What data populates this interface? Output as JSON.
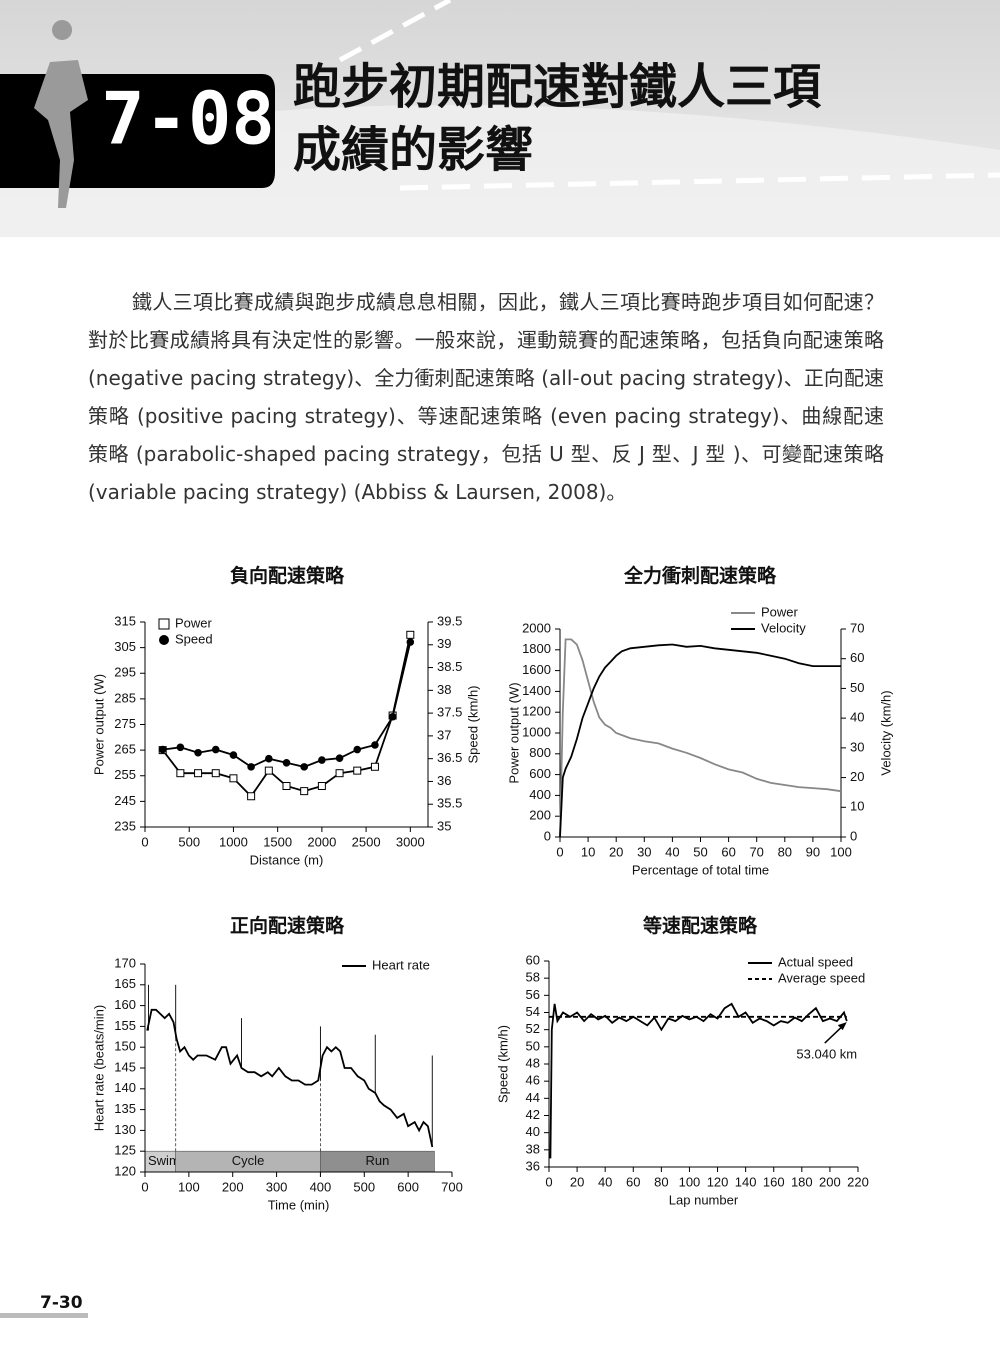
{
  "header": {
    "chapter": "7-08",
    "title": [
      "跑步初期配速對鐵人三項",
      "成績的影響"
    ]
  },
  "body": "鐵人三項比賽成績與跑步成績息息相關，因此，鐵人三項比賽時跑步項目如何配速？對於比賽成績將具有決定性的影響。一般來說，運動競賽的配速策略，包括負向配速策略 (negative pacing strategy)、全力衝刺配速策略 (all-out pacing strategy)、正向配速策略 (positive pacing strategy)、等速配速策略 (even pacing strategy)、曲線配速策略 (parabolic-shaped pacing strategy，包括 U 型、反 J 型、J 型 )、可變配速策略 (variable pacing strategy) (Abbiss & Laursen, 2008)。",
  "page_number": "7-30",
  "chart_data": [
    {
      "type": "line",
      "title": "負向配速策略",
      "x_label": "Distance (m)",
      "y_label": "Power output (W)",
      "y2_label": "Speed (km/h)",
      "xlim": [
        0,
        3200
      ],
      "xticks": [
        0,
        500,
        1000,
        1500,
        2000,
        2500,
        3000
      ],
      "ylim": [
        235,
        315
      ],
      "yticks": [
        235,
        245,
        255,
        265,
        275,
        285,
        295,
        305,
        315
      ],
      "y2lim": [
        35,
        39.5
      ],
      "y2ticks": [
        35,
        35.5,
        36,
        36.5,
        37,
        37.5,
        38,
        38.5,
        39,
        39.5
      ],
      "legend": "upper left",
      "series": [
        {
          "name": "Power",
          "color": "#000000",
          "marker": "open-square",
          "x": [
            200,
            400,
            600,
            800,
            1000,
            1200,
            1400,
            1600,
            1800,
            2000,
            2200,
            2400,
            2600,
            2800,
            3000
          ],
          "values": [
            265,
            256,
            256,
            256,
            254,
            247,
            257,
            251,
            249,
            251,
            256,
            257,
            258.5,
            278.5,
            310
          ]
        },
        {
          "name": "Speed",
          "color": "#000000",
          "marker": "filled-circle",
          "axis": "y2",
          "x": [
            200,
            400,
            600,
            800,
            1000,
            1200,
            1400,
            1600,
            1800,
            2000,
            2200,
            2400,
            2600,
            2800,
            3000
          ],
          "values": [
            36.7,
            36.75,
            36.63,
            36.7,
            36.58,
            36.32,
            36.5,
            36.41,
            36.32,
            36.47,
            36.51,
            36.7,
            36.8,
            37.42,
            39.06
          ]
        }
      ]
    },
    {
      "type": "line",
      "title": "全力衝刺配速策略",
      "x_label": "Percentage of total time",
      "y_label": "Power output (W)",
      "y2_label": "Velocity (km/h)",
      "xlim": [
        0,
        100
      ],
      "xticks": [
        0,
        10,
        20,
        30,
        40,
        50,
        60,
        70,
        80,
        90,
        100
      ],
      "ylim": [
        0,
        2000
      ],
      "yticks": [
        0,
        200,
        400,
        600,
        800,
        1000,
        1200,
        1400,
        1600,
        1800,
        2000
      ],
      "y2lim": [
        0,
        70
      ],
      "y2ticks": [
        0,
        10,
        20,
        30,
        40,
        50,
        60,
        70
      ],
      "legend": "upper right",
      "series": [
        {
          "name": "Power",
          "color": "#888888",
          "x": [
            0,
            1,
            2,
            4,
            6,
            8,
            10,
            12,
            14,
            16,
            18,
            20,
            25,
            30,
            35,
            40,
            45,
            50,
            55,
            60,
            65,
            70,
            75,
            80,
            85,
            90,
            95,
            100
          ],
          "values": [
            0,
            1200,
            1900,
            1900,
            1850,
            1700,
            1500,
            1300,
            1150,
            1080,
            1050,
            1000,
            950,
            920,
            900,
            850,
            810,
            760,
            700,
            650,
            620,
            560,
            520,
            500,
            480,
            470,
            460,
            440
          ]
        },
        {
          "name": "Velocity",
          "color": "#000000",
          "axis": "y2",
          "x": [
            0,
            1,
            2,
            4,
            6,
            8,
            10,
            12,
            14,
            16,
            18,
            20,
            22,
            25,
            30,
            35,
            40,
            45,
            50,
            55,
            60,
            65,
            70,
            75,
            80,
            85,
            90,
            95,
            100
          ],
          "values": [
            0,
            20,
            23,
            27,
            33,
            40,
            45,
            50,
            54,
            57,
            59,
            61,
            62.5,
            63.5,
            64,
            64.5,
            64.8,
            64,
            64.3,
            63.5,
            63,
            62.5,
            62,
            61,
            60,
            58.5,
            57.5,
            57.5,
            57.5
          ]
        }
      ]
    },
    {
      "type": "line",
      "title": "正向配速策略",
      "x_label": "Time (min)",
      "y_label": "Heart rate (beats/min)",
      "xlim": [
        0,
        700
      ],
      "xticks": [
        0,
        100,
        200,
        300,
        400,
        500,
        600,
        700
      ],
      "ylim": [
        120,
        170
      ],
      "yticks": [
        120,
        125,
        130,
        135,
        140,
        145,
        150,
        155,
        160,
        165,
        170
      ],
      "legend": "upper right",
      "series": [
        {
          "name": "Heart rate",
          "color": "#000000",
          "x": [
            5,
            15,
            25,
            35,
            45,
            55,
            65,
            72,
            80,
            90,
            100,
            110,
            120,
            140,
            160,
            175,
            185,
            195,
            210,
            220,
            235,
            250,
            265,
            280,
            290,
            305,
            320,
            335,
            350,
            365,
            380,
            395,
            405,
            415,
            425,
            435,
            445,
            455,
            470,
            485,
            500,
            510,
            525,
            535,
            545,
            560,
            575,
            590,
            600,
            615,
            625,
            635,
            645,
            655
          ],
          "values": [
            154,
            159,
            159,
            158,
            157,
            158,
            156,
            152,
            149,
            150,
            148,
            147,
            148,
            148,
            147,
            150,
            150,
            146,
            148,
            145,
            144,
            144,
            143,
            144,
            143,
            145,
            143,
            142,
            142,
            141,
            141,
            142,
            148,
            150,
            149,
            150,
            149,
            145,
            145,
            143,
            142,
            140,
            139,
            137,
            136,
            135,
            133,
            134,
            131,
            132,
            130,
            132,
            131,
            126
          ]
        }
      ],
      "peaks": {
        "x": [
          8,
          70,
          220,
          400,
          525,
          655
        ],
        "values": [
          165,
          165,
          157,
          155,
          153,
          148
        ]
      },
      "segments": [
        {
          "label": "Swim",
          "start": 0,
          "end": 70,
          "color": "#cfcfcf"
        },
        {
          "label": "Cycle",
          "start": 70,
          "end": 400,
          "color": "#b4b4b4"
        },
        {
          "label": "Run",
          "start": 400,
          "end": 660,
          "color": "#8f8f8f"
        }
      ],
      "segment_ylim": [
        120,
        125
      ]
    },
    {
      "type": "line",
      "title": "等速配速策略",
      "x_label": "Lap number",
      "y_label": "Speed (km/h)",
      "xlim": [
        0,
        220
      ],
      "xticks": [
        0,
        20,
        40,
        60,
        80,
        100,
        120,
        140,
        160,
        180,
        200,
        220
      ],
      "ylim": [
        36,
        60
      ],
      "yticks": [
        36,
        38,
        40,
        42,
        44,
        46,
        48,
        50,
        52,
        54,
        56,
        58,
        60
      ],
      "legend": "upper right",
      "series": [
        {
          "name": "Actual speed",
          "color": "#000000",
          "x": [
            1,
            2,
            4,
            6,
            10,
            15,
            20,
            25,
            30,
            35,
            40,
            45,
            50,
            55,
            60,
            65,
            70,
            75,
            80,
            85,
            90,
            95,
            100,
            105,
            110,
            115,
            120,
            125,
            130,
            135,
            140,
            145,
            150,
            155,
            160,
            165,
            170,
            175,
            180,
            185,
            190,
            195,
            200,
            205,
            210,
            212
          ],
          "values": [
            37,
            52,
            55,
            53,
            54,
            53.5,
            54,
            53,
            53.8,
            53.2,
            53.6,
            52.8,
            53.4,
            53,
            53.5,
            53,
            52.5,
            53.4,
            52,
            53.3,
            53,
            53.6,
            53.2,
            53.5,
            53,
            53.8,
            53.3,
            54.5,
            55,
            53.5,
            54,
            52.8,
            53.3,
            53,
            52.5,
            53,
            52.8,
            53.4,
            53,
            53.8,
            54.5,
            53,
            53.3,
            53,
            54,
            53
          ]
        },
        {
          "name": "Average speed",
          "color": "#000000",
          "dash": true,
          "x": [
            0,
            212
          ],
          "values": [
            53.5,
            53.5
          ]
        }
      ],
      "annotation": {
        "text": "53.040 km",
        "x": 212,
        "y": 53
      }
    }
  ]
}
